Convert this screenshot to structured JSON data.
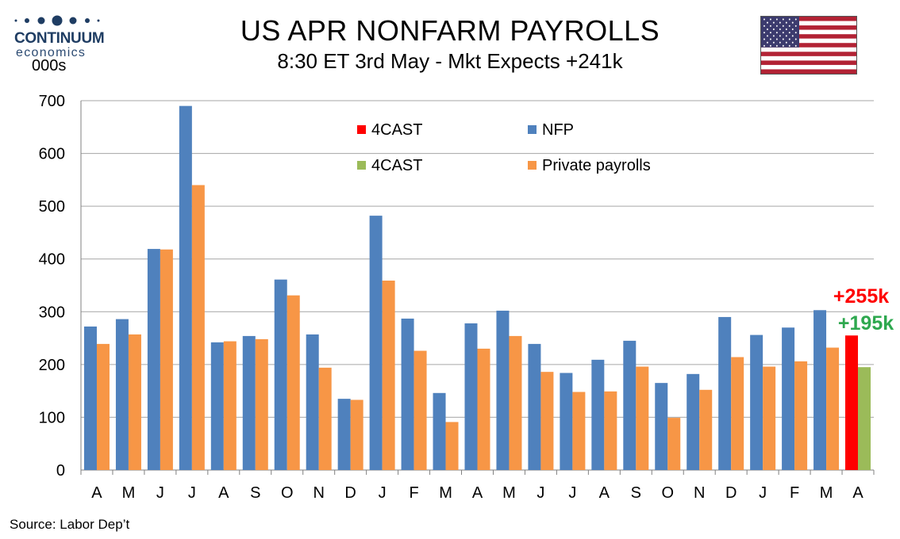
{
  "header": {
    "title": "US APR NONFARM PAYROLLS",
    "subtitle": "8:30 ET 3rd May - Mkt Expects +241k",
    "logo_top": "CONTINUUM",
    "logo_bottom": "economics",
    "unit": "000s"
  },
  "footer": {
    "source": "Source: Labor Dep’t"
  },
  "colors": {
    "nfp": "#4f81bd",
    "private": "#f79646",
    "forecast_nfp": "#ff0000",
    "forecast_private": "#9bbb59",
    "grid": "#a6a6a6",
    "label_high": "#ff0000",
    "label_low": "#2ea84f"
  },
  "chart_data": {
    "type": "bar",
    "categories": [
      "A",
      "M",
      "J",
      "J",
      "A",
      "S",
      "O",
      "N",
      "D",
      "J",
      "F",
      "M",
      "A",
      "M",
      "J",
      "J",
      "A",
      "S",
      "O",
      "N",
      "D",
      "J",
      "F",
      "M",
      "A"
    ],
    "ylim": [
      0,
      700
    ],
    "yticks": [
      0,
      100,
      200,
      300,
      400,
      500,
      600,
      700
    ],
    "grid": true,
    "legend_position": "top-center",
    "series": [
      {
        "name": "NFP",
        "color": "#4f81bd",
        "values": [
          272,
          286,
          419,
          690,
          242,
          254,
          361,
          257,
          135,
          482,
          287,
          146,
          278,
          302,
          239,
          184,
          209,
          245,
          165,
          182,
          290,
          256,
          270,
          303,
          null
        ]
      },
      {
        "name": "Private payrolls",
        "color": "#f79646",
        "values": [
          239,
          257,
          418,
          540,
          244,
          248,
          331,
          194,
          133,
          359,
          226,
          91,
          230,
          254,
          186,
          148,
          149,
          196,
          99,
          152,
          214,
          196,
          206,
          232,
          null
        ]
      },
      {
        "name": "4CAST",
        "color": "#ff0000",
        "values": [
          null,
          null,
          null,
          null,
          null,
          null,
          null,
          null,
          null,
          null,
          null,
          null,
          null,
          null,
          null,
          null,
          null,
          null,
          null,
          null,
          null,
          null,
          null,
          null,
          255
        ]
      },
      {
        "name": "4CAST",
        "color": "#9bbb59",
        "values": [
          null,
          null,
          null,
          null,
          null,
          null,
          null,
          null,
          null,
          null,
          null,
          null,
          null,
          null,
          null,
          null,
          null,
          null,
          null,
          null,
          null,
          null,
          null,
          null,
          195
        ]
      }
    ],
    "legend": [
      {
        "label": "4CAST",
        "color": "#ff0000"
      },
      {
        "label": "NFP",
        "color": "#4f81bd"
      },
      {
        "label": "4CAST",
        "color": "#9bbb59"
      },
      {
        "label": "Private payrolls",
        "color": "#f79646"
      }
    ],
    "annotations": [
      {
        "text": "+255k",
        "color": "#ff0000"
      },
      {
        "text": "+195k",
        "color": "#2ea84f"
      }
    ]
  }
}
